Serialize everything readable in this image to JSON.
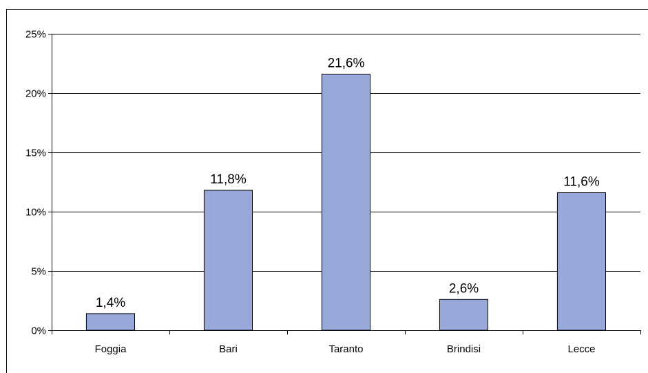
{
  "chart_data": {
    "type": "bar",
    "title": "",
    "xlabel": "",
    "ylabel": "",
    "categories": [
      "Foggia",
      "Bari",
      "Taranto",
      "Brindisi",
      "Lecce"
    ],
    "values": [
      1.4,
      11.8,
      21.6,
      2.6,
      11.6
    ],
    "data_labels": [
      "1,4%",
      "11,8%",
      "21,6%",
      "2,6%",
      "11,6%"
    ],
    "ylim": [
      0,
      25
    ],
    "y_ticks": [
      0,
      5,
      10,
      15,
      20,
      25
    ],
    "y_tick_labels": [
      "0%",
      "5%",
      "10%",
      "15%",
      "20%",
      "25%"
    ],
    "grid": true,
    "legend": "none",
    "colors": {
      "bar_fill": "#98A8D8",
      "bar_stroke": "#000000",
      "grid": "#000000",
      "background": "#FFFFFF"
    }
  }
}
